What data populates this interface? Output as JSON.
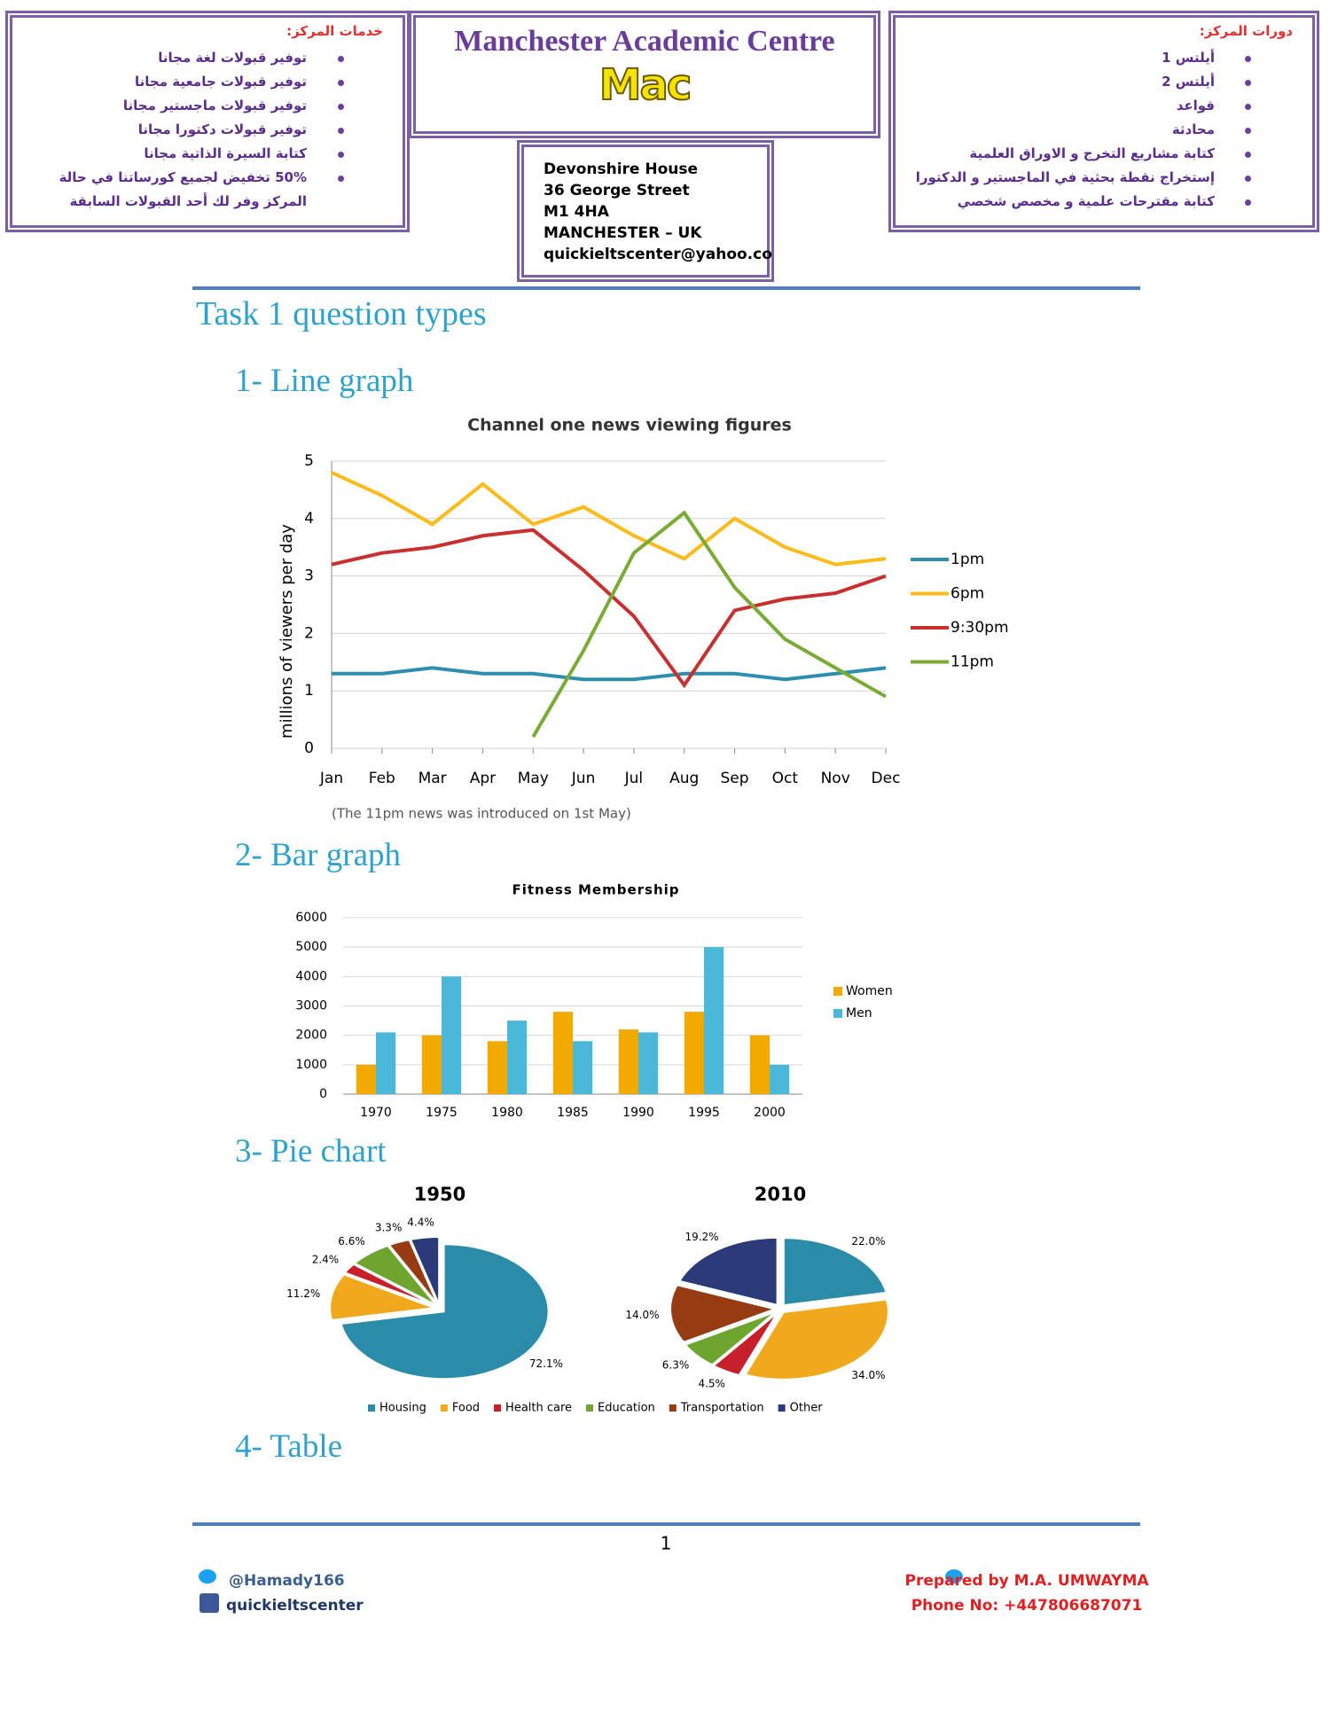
{
  "header": {
    "services_title": "خدمات المركز:",
    "services": [
      "توفير قبولات لغة مجانا",
      "توفير قبولات جامعية مجانا",
      "توفير قبولات ماجستير مجانا",
      "توفير قبولات دكتورا مجانا",
      "كتابة السيرة الذاتية مجانا",
      "50% تخفيض لجميع كورساتنا في حالة المركز وفر لك أحد القبولات السابقة"
    ],
    "title": "Manchester Academic Centre",
    "logo": "Mac",
    "address": [
      "Devonshire House",
      "36 George Street",
      "M1 4HA",
      "MANCHESTER – UK",
      "quickieltscenter@yahoo.co"
    ],
    "courses_title": "دورات المركز:",
    "courses": [
      "أيلتس 1",
      "أيلتس 2",
      "قواعد",
      "محادثة",
      "كتابة مشاريع التخرج و الاوراق العلمية",
      "إستخراج نقطة بحثية في الماجستير و الدكتورا",
      "كتابة مقترحات علمية و مخصص شخصي"
    ]
  },
  "headings": {
    "section": "Task 1 question types",
    "line": "1- Line graph",
    "bar": "2- Bar graph",
    "pie": "3- Pie chart",
    "table": "4- Table"
  },
  "chart_data": [
    {
      "type": "line",
      "title": "Channel one news viewing figures",
      "y_label": "millions of viewers per day",
      "note": "(The 11pm news was introduced on 1st May)",
      "categories": [
        "Jan",
        "Feb",
        "Mar",
        "Apr",
        "May",
        "Jun",
        "Jul",
        "Aug",
        "Sep",
        "Oct",
        "Nov",
        "Dec"
      ],
      "series": [
        {
          "name": "1pm",
          "color": "#2e8fad",
          "values": [
            1.3,
            1.3,
            1.4,
            1.3,
            1.3,
            1.2,
            1.2,
            1.3,
            1.3,
            1.2,
            1.3,
            1.4
          ]
        },
        {
          "name": "6pm",
          "color": "#fdbb1a",
          "values": [
            4.8,
            4.4,
            3.9,
            4.6,
            3.9,
            4.2,
            3.7,
            3.3,
            4.0,
            3.5,
            3.2,
            3.3
          ]
        },
        {
          "name": "9:30pm",
          "color": "#c8302f",
          "values": [
            3.2,
            3.4,
            3.5,
            3.7,
            3.8,
            3.1,
            2.3,
            1.1,
            2.4,
            2.6,
            2.7,
            3.0
          ]
        },
        {
          "name": "11pm",
          "color": "#7aab35",
          "values": [
            null,
            null,
            null,
            null,
            0.2,
            1.7,
            3.4,
            4.1,
            2.8,
            1.9,
            1.4,
            0.9
          ]
        }
      ],
      "ylim": [
        0,
        5
      ],
      "yticks": [
        0,
        1,
        2,
        3,
        4,
        5
      ],
      "grid": true,
      "legend": "right"
    },
    {
      "type": "bar",
      "title": "Fitness Membership",
      "categories": [
        "1970",
        "1975",
        "1980",
        "1985",
        "1990",
        "1995",
        "2000"
      ],
      "series": [
        {
          "name": "Women",
          "color": "#f2a900",
          "values": [
            1000,
            2000,
            1800,
            2800,
            2200,
            2800,
            2000
          ]
        },
        {
          "name": "Men",
          "color": "#4bb8d9",
          "values": [
            2100,
            4000,
            2500,
            1800,
            2100,
            5000,
            1000
          ]
        }
      ],
      "ylim": [
        0,
        6000
      ],
      "yticks": [
        0,
        1000,
        2000,
        3000,
        4000,
        5000,
        6000
      ],
      "grid": true,
      "legend": "right"
    },
    {
      "type": "pie",
      "categories": [
        "Housing",
        "Food",
        "Health care",
        "Education",
        "Transportation",
        "Other"
      ],
      "colors": [
        "#2a8ca8",
        "#f0a91c",
        "#c8202a",
        "#6ea52f",
        "#973b12",
        "#2b3a78"
      ],
      "series": [
        {
          "name": "1950",
          "values": [
            72.1,
            11.2,
            2.4,
            6.6,
            3.3,
            4.4
          ],
          "value_labels": [
            "72.1%",
            "11.2%",
            "2.4%",
            "6.6%",
            "3.3%",
            "4.4%"
          ]
        },
        {
          "name": "2010",
          "values": [
            22.0,
            34.0,
            4.5,
            6.3,
            14.0,
            19.2
          ],
          "value_labels": [
            "22.0%",
            "34.0%",
            "4.5%",
            "6.3%",
            "14.0%",
            "19.2%"
          ]
        }
      ],
      "legend": "bottom"
    }
  ],
  "footer": {
    "page": 1,
    "twitter": "@Hamady166",
    "facebook": "quickieltscenter",
    "prepared_by": "Prepared by M.A. UMWAYMA",
    "phone": "Phone No: +447806687071"
  }
}
